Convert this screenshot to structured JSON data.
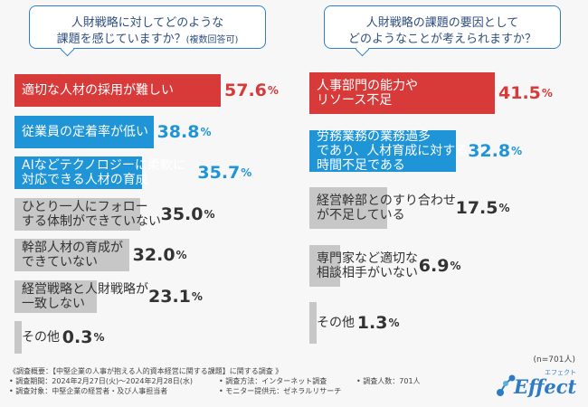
{
  "left": {
    "question_line1": "人財戦略に対してどのような",
    "question_line2": "課題を感じていますか？",
    "question_sub": "(複数回答可)"
  },
  "right": {
    "question_line1": "人財戦略の課題の要因として",
    "question_line2": "どのようなことが考えられますか？"
  },
  "n_label": "(n=701人)",
  "footer": {
    "line1": "《調査概要：【中堅企業の人事が抱える人的資本経営に関する課題】に関する調査 》",
    "period": "• 調査期間：2024年2月27日(火)～2024年2月28日(水)",
    "method": "• 調査方法：インターネット調査",
    "count": "• 調査人数：701人",
    "target": "• 調査対象：中堅企業の経営者・及び人事担当者",
    "provider": "• モニター提供元：ゼネラルリサーチ"
  },
  "logo": {
    "text": "Effect",
    "kana": "エフェクト"
  },
  "colors": {
    "red": "#d83a3a",
    "blue": "#1f95d8",
    "gray": "#c7c7c7"
  },
  "chart_data": [
    {
      "type": "bar",
      "categories": [
        "適切な人材の採用が難しい",
        "従業員の定着率が低い",
        "AIなどテクノロジーに柔軟に対応できる人材の育成",
        "ひとり一人にフォローする体制ができていない",
        "幹部人材の育成ができていない",
        "経営戦略と人財戦略が一致しない",
        "その他"
      ],
      "label_lines": [
        [
          "適切な人材の採用が難しい"
        ],
        [
          "従業員の定着率が低い"
        ],
        [
          "AIなどテクノロジーに柔軟に",
          "対応できる人材の育成"
        ],
        [
          "ひとり一人にフォロー",
          "する体制ができていない"
        ],
        [
          "幹部人材の育成が",
          "できていない"
        ],
        [
          "経営戦略と人財戦略が",
          "一致しない"
        ],
        [
          "その他"
        ]
      ],
      "values": [
        57.6,
        38.8,
        35.7,
        35.0,
        32.0,
        23.1,
        0.3
      ],
      "value_labels": [
        "57.6",
        "38.8",
        "35.7",
        "35.0",
        "32.0",
        "23.1",
        "0.3"
      ],
      "unit": "%",
      "highlight": [
        "red",
        "blue",
        "blue",
        "gray",
        "gray",
        "gray",
        "gray"
      ]
    },
    {
      "type": "bar",
      "categories": [
        "人事部門の能力やリソース不足",
        "労務業務の業務過多であり、人材育成に対する時間不足である",
        "経営幹部とのすり合わせが不足している",
        "専門家など適切な相談相手がいない",
        "その他"
      ],
      "label_lines": [
        [
          "人事部門の能力や",
          "リソース不足"
        ],
        [
          "労務業務の業務過多",
          "であり、人材育成に対する",
          "時間不足である"
        ],
        [
          "経営幹部とのすり合わせ",
          "が不足している"
        ],
        [
          "専門家など適切な",
          "相談相手がいない"
        ],
        [
          "その他"
        ]
      ],
      "values": [
        41.5,
        32.8,
        17.5,
        6.9,
        1.3
      ],
      "value_labels": [
        "41.5",
        "32.8",
        "17.5",
        "6.9",
        "1.3"
      ],
      "unit": "%",
      "highlight": [
        "red",
        "blue",
        "gray",
        "gray",
        "gray"
      ]
    }
  ]
}
